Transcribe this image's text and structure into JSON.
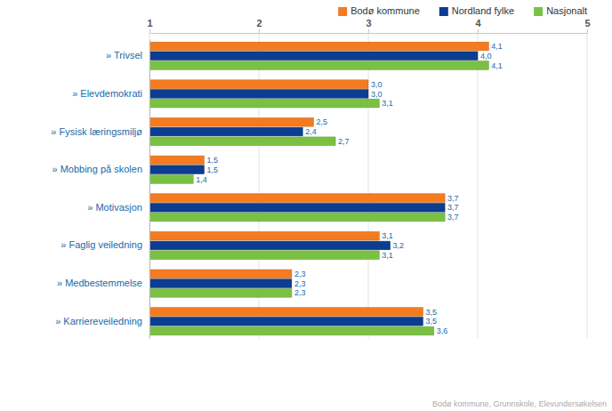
{
  "chart_data": {
    "type": "bar",
    "orientation": "horizontal",
    "categories": [
      "» Trivsel",
      "» Elevdemokrati",
      "» Fysisk læringsmiljø",
      "» Mobbing på skolen",
      "» Motivasjon",
      "» Faglig veiledning",
      "» Medbestemmelse",
      "» Karriereveiledning"
    ],
    "series": [
      {
        "name": "Bodø kommune",
        "color": "#f47b20",
        "values": [
          4.1,
          3.0,
          2.5,
          1.5,
          3.7,
          3.1,
          2.3,
          3.5
        ],
        "value_labels": [
          "4,1",
          "3,0",
          "2,5",
          "1,5",
          "3,7",
          "3,1",
          "2,3",
          "3,5"
        ]
      },
      {
        "name": "Nordland fylke",
        "color": "#0b3d91",
        "values": [
          4.0,
          3.0,
          2.4,
          1.5,
          3.7,
          3.2,
          2.3,
          3.5
        ],
        "value_labels": [
          "4,0",
          "3,0",
          "2,4",
          "1,5",
          "3,7",
          "3,2",
          "2,3",
          "3,5"
        ]
      },
      {
        "name": "Nasjonalt",
        "color": "#7ac143",
        "values": [
          4.1,
          3.1,
          2.7,
          1.4,
          3.7,
          3.1,
          2.3,
          3.6
        ],
        "value_labels": [
          "4,1",
          "3,1",
          "2,7",
          "1,4",
          "3,7",
          "3,1",
          "2,3",
          "3,6"
        ]
      }
    ],
    "xlim": [
      1,
      5
    ],
    "xticks": [
      1,
      2,
      3,
      4,
      5
    ],
    "grid": true,
    "data_labels": true,
    "legend": "top-right",
    "annotations": [
      "Bodø kommune, Grunnskole, Elevundersøkelsen"
    ]
  }
}
